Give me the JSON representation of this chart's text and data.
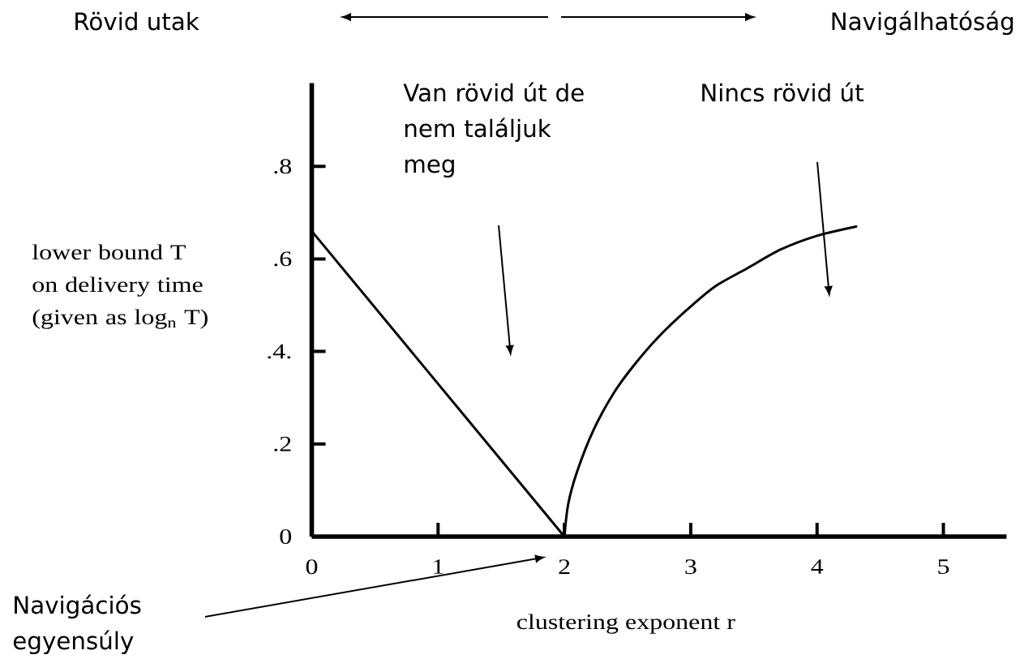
{
  "chart_data": {
    "type": "line",
    "xlabel": "clustering exponent r",
    "ylabel": "lower bound T on delivery time (given as log$_{n}$ T)",
    "series": [
      {
        "color": "#000000",
        "x": [
          0,
          2
        ],
        "values": [
          0.66,
          0
        ]
      },
      {
        "color": "#000000",
        "x": [
          2,
          2.03,
          2.1,
          2.23,
          2.39,
          2.55,
          2.74,
          2.97,
          3.19,
          3.45,
          3.71,
          4,
          4.31
        ],
        "values": [
          0,
          0.07,
          0.14,
          0.23,
          0.31,
          0.37,
          0.43,
          0.49,
          0.54,
          0.58,
          0.62,
          0.65,
          0.67
        ]
      }
    ],
    "xlim": [
      0,
      5.5
    ],
    "xticks": [
      0,
      1,
      2,
      3,
      4,
      5
    ],
    "ylim": [
      0,
      0.98
    ],
    "yticks": [
      0,
      {
        "value": 0.2,
        "label": ".2"
      },
      {
        "value": 0.4,
        "label": ".4."
      },
      {
        "value": 0.6,
        "label": ".6"
      },
      {
        "value": 0.8,
        "label": ".8"
      }
    ],
    "annotations": [
      "Rövid utak",
      "Navigálhatóság",
      "Van rövid út de nem találjuk meg",
      "Nincs rövid út",
      "Navigációs egyensúly"
    ],
    "line_style": "solid"
  }
}
